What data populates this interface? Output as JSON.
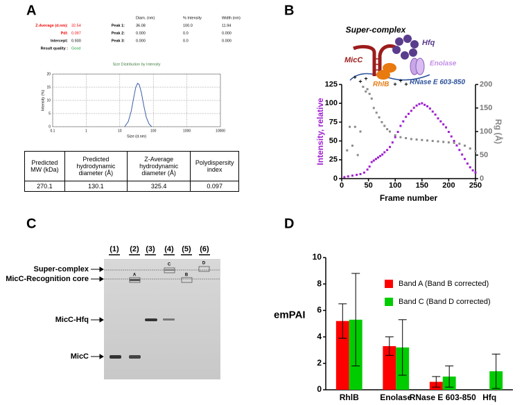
{
  "panels": {
    "a": "A",
    "b": "B",
    "c": "C",
    "d": "D"
  },
  "dls": {
    "rows": [
      {
        "label": "Z-Average (d.nm):",
        "value": "32.54"
      },
      {
        "label": "PdI:",
        "value": "0.097"
      },
      {
        "label": "Intercept:",
        "value": "0.930"
      },
      {
        "label": "Result quality :",
        "value": "Good"
      }
    ],
    "peak_headers": [
      "Diam. (nm)",
      "% Intensity",
      "Width (nm)"
    ],
    "peaks": [
      {
        "label": "Peak 1:",
        "cells": [
          "36.08",
          "100.0",
          "11.94"
        ]
      },
      {
        "label": "Peak 2:",
        "cells": [
          "0.000",
          "0.0",
          "0.000"
        ]
      },
      {
        "label": "Peak 3:",
        "cells": [
          "0.000",
          "0.0",
          "0.000"
        ]
      }
    ]
  },
  "table": {
    "header": [
      "Predicted MW (kDa)",
      "Predicted hydrodynamic diameter (Å)",
      "Z-Average hydrodynamic diameter (Å)",
      "Polydispersity index"
    ],
    "rows": [
      [
        "270.1",
        "130.1",
        "325.4",
        "0.097"
      ]
    ]
  },
  "diagram": {
    "title": "Super-complex",
    "labels": {
      "micc": "MicC",
      "hfq": "Hfq",
      "enolase": "Enolase",
      "rhlb": "RhlB",
      "rnase": "RNase E 603-850"
    },
    "charges": [
      "+",
      "+",
      "+",
      "+",
      "+",
      "+"
    ]
  },
  "gel": {
    "lanes": [
      "(1)",
      "(2)",
      "(3)",
      "(4)",
      "(5)",
      "(6)"
    ],
    "bands": [
      "A",
      "B",
      "C",
      "D"
    ],
    "markers": [
      "Super-complex",
      "MicC-Recognition core",
      "MicC-Hfq",
      "MicC"
    ]
  },
  "chart_data": [
    {
      "type": "line",
      "title": "Size Distribution by Intensity",
      "xlabel": "Size (d.nm)",
      "ylabel": "Intensity (%)",
      "xscale": "log",
      "xlim": [
        0.1,
        10000
      ],
      "xticks": [
        0.1,
        1,
        10,
        100,
        1000,
        10000
      ],
      "ylim": [
        0,
        20
      ],
      "yticks": [
        0,
        5,
        10,
        15,
        20
      ],
      "grid": true,
      "series": [
        {
          "color": "#3b5fa8",
          "x": [
            14,
            18,
            22,
            26,
            30,
            34,
            38,
            44,
            52,
            62,
            75,
            90
          ],
          "values": [
            0,
            2,
            6,
            11,
            15,
            16.5,
            16,
            13,
            8,
            3.5,
            1,
            0
          ]
        }
      ]
    },
    {
      "type": "scatter",
      "xlabel": "Frame number",
      "ylabel": "Intensity, relative",
      "y2label": "Rg (Å)",
      "xlim": [
        0,
        250
      ],
      "xticks": [
        0,
        50,
        100,
        150,
        200,
        250
      ],
      "ylim": [
        0,
        125
      ],
      "yticks": [
        0,
        25,
        50,
        75,
        100,
        125
      ],
      "y2lim": [
        0,
        200
      ],
      "y2ticks": [
        0,
        50,
        100,
        150,
        200
      ],
      "grid": false,
      "series": [
        {
          "color": "#a020d0",
          "x": [
            5,
            12,
            20,
            28,
            35,
            42,
            48,
            52,
            56,
            60,
            64,
            68,
            72,
            76,
            80,
            85,
            90,
            95,
            100,
            105,
            110,
            115,
            120,
            125,
            130,
            135,
            140,
            145,
            150,
            155,
            160,
            165,
            170,
            175,
            180,
            185,
            190,
            195,
            200,
            205,
            210,
            215,
            220,
            225,
            230,
            235,
            240,
            245,
            250
          ],
          "values": [
            2,
            3,
            4,
            5,
            6,
            8,
            12,
            16,
            22,
            24,
            26,
            28,
            30,
            32,
            35,
            38,
            42,
            48,
            55,
            62,
            70,
            76,
            82,
            86,
            90,
            94,
            97,
            99,
            100,
            98,
            96,
            93,
            89,
            85,
            80,
            76,
            72,
            68,
            62,
            56,
            50,
            44,
            38,
            32,
            26,
            20,
            15,
            11,
            8
          ]
        },
        {
          "color": "#8a8a8a",
          "axis": "y2",
          "x": [
            10,
            15,
            20,
            25,
            30,
            35,
            40,
            45,
            48,
            52,
            56,
            60,
            65,
            70,
            75,
            80,
            85,
            90,
            100,
            110,
            120,
            130,
            140,
            150,
            160,
            170,
            180,
            190,
            200,
            210,
            220,
            230,
            240,
            250
          ],
          "values": [
            60,
            110,
            70,
            110,
            50,
            100,
            195,
            185,
            190,
            180,
            170,
            150,
            140,
            130,
            120,
            112,
            105,
            100,
            92,
            88,
            86,
            84,
            83,
            82,
            81,
            80,
            79,
            78,
            77,
            76,
            74,
            70,
            64,
            58
          ]
        }
      ]
    },
    {
      "type": "bar",
      "ylabel": "emPAI",
      "categories": [
        "RhlB",
        "Enolase",
        "RNase E 603-850",
        "Hfq"
      ],
      "ylim": [
        0,
        10
      ],
      "yticks": [
        0,
        2,
        4,
        6,
        8,
        10
      ],
      "grid": false,
      "legend": "upper right",
      "series": [
        {
          "name": "Band A (Band B corrected)",
          "color": "#ff0000",
          "values": [
            5.2,
            3.3,
            0.6,
            null
          ],
          "errors": [
            1.3,
            0.7,
            0.4,
            null
          ]
        },
        {
          "name": "Band C (Band D corrected)",
          "color": "#00cc00",
          "values": [
            5.3,
            3.2,
            1.0,
            1.4
          ],
          "errors": [
            3.5,
            2.1,
            0.8,
            1.3
          ]
        }
      ]
    }
  ]
}
